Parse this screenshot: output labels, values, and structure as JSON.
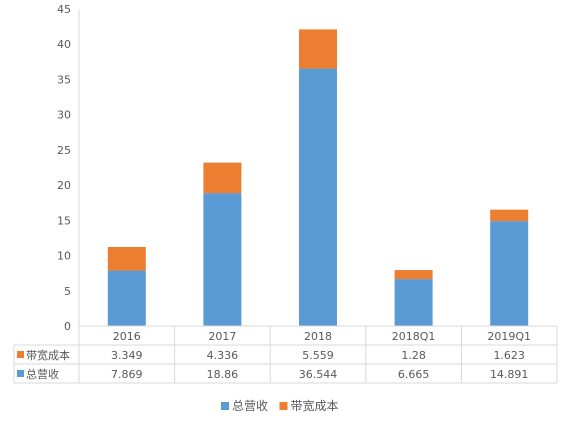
{
  "chart_data": {
    "type": "bar",
    "stacked": true,
    "categories": [
      "2016",
      "2017",
      "2018",
      "2018Q1",
      "2019Q1"
    ],
    "series": [
      {
        "name": "总营收",
        "color": "#5b9bd5",
        "values": [
          7.869,
          18.86,
          36.544,
          6.665,
          14.891
        ],
        "labels": [
          "7.869",
          "18.86",
          "36.544",
          "6.665",
          "14.891"
        ]
      },
      {
        "name": "带宽成本",
        "color": "#ed7d31",
        "values": [
          3.349,
          4.336,
          5.559,
          1.28,
          1.623
        ],
        "labels": [
          "3.349",
          "4.336",
          "5.559",
          "1.28",
          "1.623"
        ]
      }
    ],
    "table_row_order": [
      1,
      0
    ],
    "ylim": [
      0,
      45
    ],
    "yticks": [
      "0",
      "5",
      "10",
      "15",
      "20",
      "25",
      "30",
      "35",
      "40",
      "45"
    ],
    "grid": false,
    "data_table": true,
    "legend_placement": "bottom"
  }
}
